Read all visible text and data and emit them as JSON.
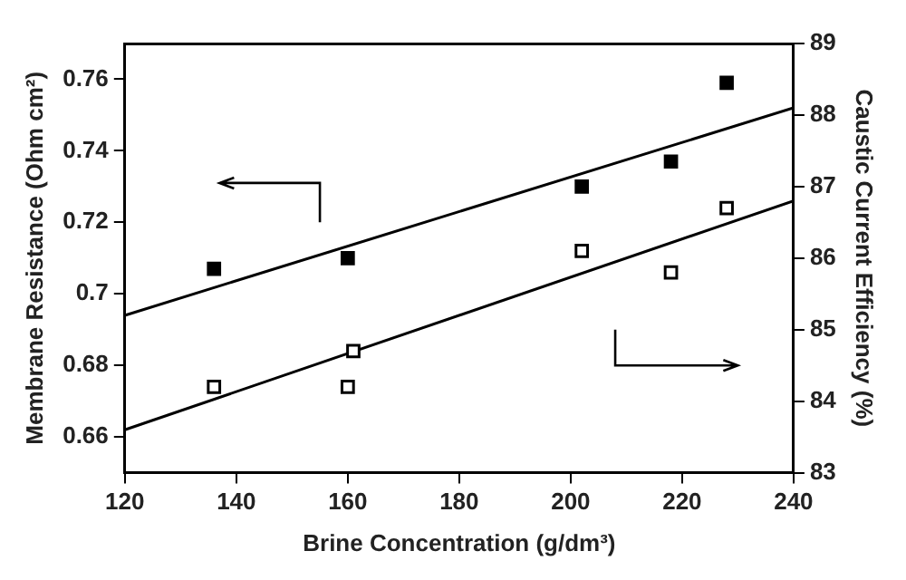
{
  "chart_data": {
    "type": "scatter",
    "xlabel": "Brine Concentration (g/dm³)",
    "ylabel": "Membrane Resistance (Ohm cm²)",
    "y2label": "Caustic Current Efficiency (%)",
    "xlim": [
      120,
      240
    ],
    "xticks": [
      120,
      140,
      160,
      180,
      200,
      220,
      240
    ],
    "ylim": [
      0.65,
      0.77
    ],
    "yticks": [
      0.66,
      0.68,
      0.7,
      0.72,
      0.74,
      0.76
    ],
    "y2lim": [
      83,
      89
    ],
    "y2ticks": [
      83,
      84,
      85,
      86,
      87,
      88,
      89
    ],
    "grid": false,
    "legend": false,
    "marker": "square",
    "series": [
      {
        "type": "scatter",
        "axis": "y",
        "color": "#000000",
        "x": [
          136,
          160,
          202,
          218,
          228
        ],
        "values": [
          0.707,
          0.71,
          0.73,
          0.737,
          0.759
        ]
      },
      {
        "type": "scatter",
        "axis": "y2",
        "color": "#000000",
        "x": [
          136,
          160,
          161,
          202,
          218,
          228
        ],
        "values": [
          84.2,
          84.2,
          84.7,
          86.1,
          85.8,
          86.7
        ]
      },
      {
        "type": "line",
        "axis": "y",
        "color": "#000000",
        "marker": "none",
        "x": [
          120,
          240
        ],
        "values": [
          0.694,
          0.752
        ]
      },
      {
        "type": "line",
        "axis": "y2",
        "color": "#000000",
        "marker": "none",
        "x": [
          120,
          240
        ],
        "values": [
          83.6,
          86.8
        ]
      }
    ]
  }
}
